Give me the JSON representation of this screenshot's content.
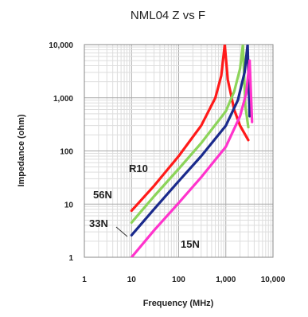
{
  "chart_data": {
    "type": "line",
    "title": "NML04 Z vs F",
    "xlabel": "Frequency (MHz)",
    "ylabel": "Impedance (ohm)",
    "x_scale": "log",
    "y_scale": "log",
    "xlim": [
      1,
      10000
    ],
    "ylim": [
      1,
      10000
    ],
    "x_ticks": [
      "1",
      "10",
      "100",
      "1,000",
      "10,000"
    ],
    "y_ticks": [
      "1",
      "10",
      "100",
      "1,000",
      "10,000"
    ],
    "grid": true,
    "series": [
      {
        "name": "R10",
        "color": "#ff1a1a",
        "x": [
          10,
          30,
          100,
          300,
          600,
          800,
          950,
          1100,
          1500,
          2000,
          3000
        ],
        "y": [
          7.5,
          22,
          80,
          300,
          1000,
          2600,
          10000,
          2200,
          600,
          300,
          160
        ]
      },
      {
        "name": "56N",
        "color": "#8cd45a",
        "x": [
          10,
          30,
          100,
          300,
          1000,
          1500,
          2000,
          2300,
          2600,
          3000
        ],
        "y": [
          4.5,
          14,
          46,
          140,
          560,
          1300,
          3500,
          10000,
          700,
          280
        ]
      },
      {
        "name": "33N",
        "color": "#1a2a8c",
        "x": [
          10,
          30,
          100,
          300,
          1000,
          1800,
          2500,
          2900,
          3200
        ],
        "y": [
          2.6,
          8,
          27,
          80,
          300,
          900,
          3000,
          10000,
          450
        ]
      },
      {
        "name": "15N",
        "color": "#ff33cc",
        "x": [
          10,
          30,
          100,
          300,
          1000,
          2000,
          2700,
          3200,
          3600
        ],
        "y": [
          1.0,
          3.2,
          10.5,
          32,
          120,
          450,
          1200,
          5000,
          350
        ]
      }
    ],
    "labels": [
      "R10",
      "56N",
      "33N",
      "15N"
    ]
  }
}
